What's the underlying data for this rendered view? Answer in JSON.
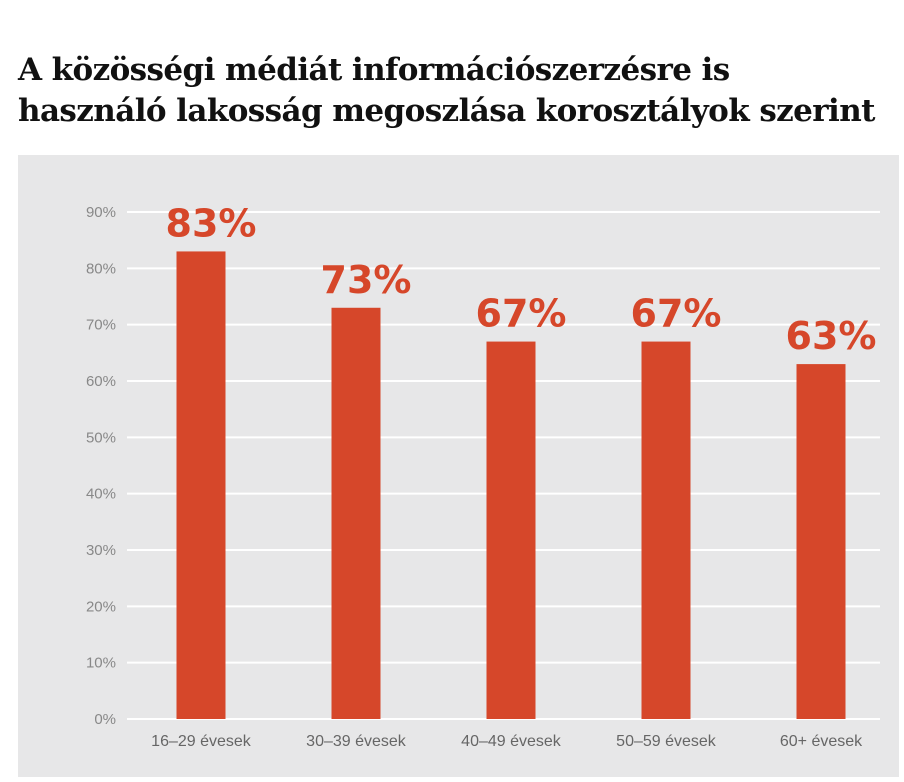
{
  "chart_data": {
    "type": "bar",
    "title_lines": [
      "A közösségi médiát információszerzésre is",
      "használó lakosság megoszlása korosztályok szerint"
    ],
    "categories": [
      "16–29 évesek",
      "30–39 évesek",
      "40–49 évesek",
      "50–59 évesek",
      "60+ évesek"
    ],
    "values": [
      83,
      73,
      67,
      67,
      63
    ],
    "data_labels": [
      "83%",
      "73%",
      "67%",
      "67%",
      "63%"
    ],
    "yticks": [
      "0%",
      "10%",
      "20%",
      "30%",
      "40%",
      "50%",
      "60%",
      "70%",
      "80%",
      "90%"
    ],
    "ylim": [
      0,
      90
    ],
    "grid": true,
    "legend": false,
    "colors": {
      "bar": "#d6472a",
      "label": "#d6472a",
      "grid": "#ffffff",
      "panel": "#e7e7e8"
    }
  }
}
